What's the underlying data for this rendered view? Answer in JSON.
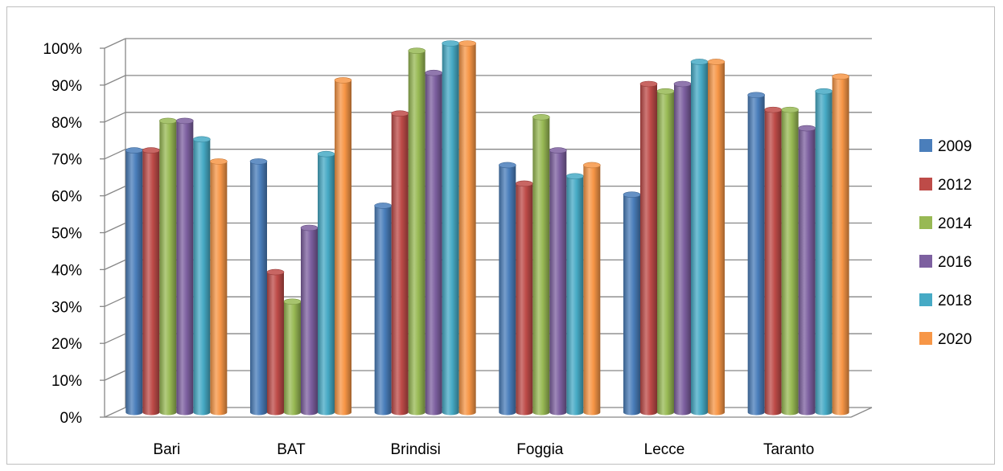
{
  "chart_data": {
    "type": "bar",
    "title": "",
    "xlabel": "",
    "ylabel": "",
    "ylim": [
      0,
      100
    ],
    "y_ticks": [
      "0%",
      "10%",
      "20%",
      "30%",
      "40%",
      "50%",
      "60%",
      "70%",
      "80%",
      "90%",
      "100%"
    ],
    "grid": true,
    "legend_position": "right",
    "categories": [
      "Bari",
      "BAT",
      "Brindisi",
      "Foggia",
      "Lecce",
      "Taranto"
    ],
    "series": [
      {
        "name": "2009",
        "color": "#4a7ebb",
        "values": [
          71,
          68,
          56,
          67,
          59,
          86
        ]
      },
      {
        "name": "2012",
        "color": "#be4b48",
        "values": [
          71,
          38,
          81,
          62,
          89,
          82
        ]
      },
      {
        "name": "2014",
        "color": "#98b954",
        "values": [
          79,
          30,
          98,
          80,
          87,
          82
        ]
      },
      {
        "name": "2016",
        "color": "#7d60a0",
        "values": [
          79,
          50,
          92,
          71,
          89,
          77
        ]
      },
      {
        "name": "2018",
        "color": "#46aac5",
        "values": [
          74,
          70,
          100,
          64,
          95,
          87
        ]
      },
      {
        "name": "2020",
        "color": "#f79646",
        "values": [
          68,
          90,
          100,
          67,
          95,
          91
        ]
      }
    ]
  }
}
